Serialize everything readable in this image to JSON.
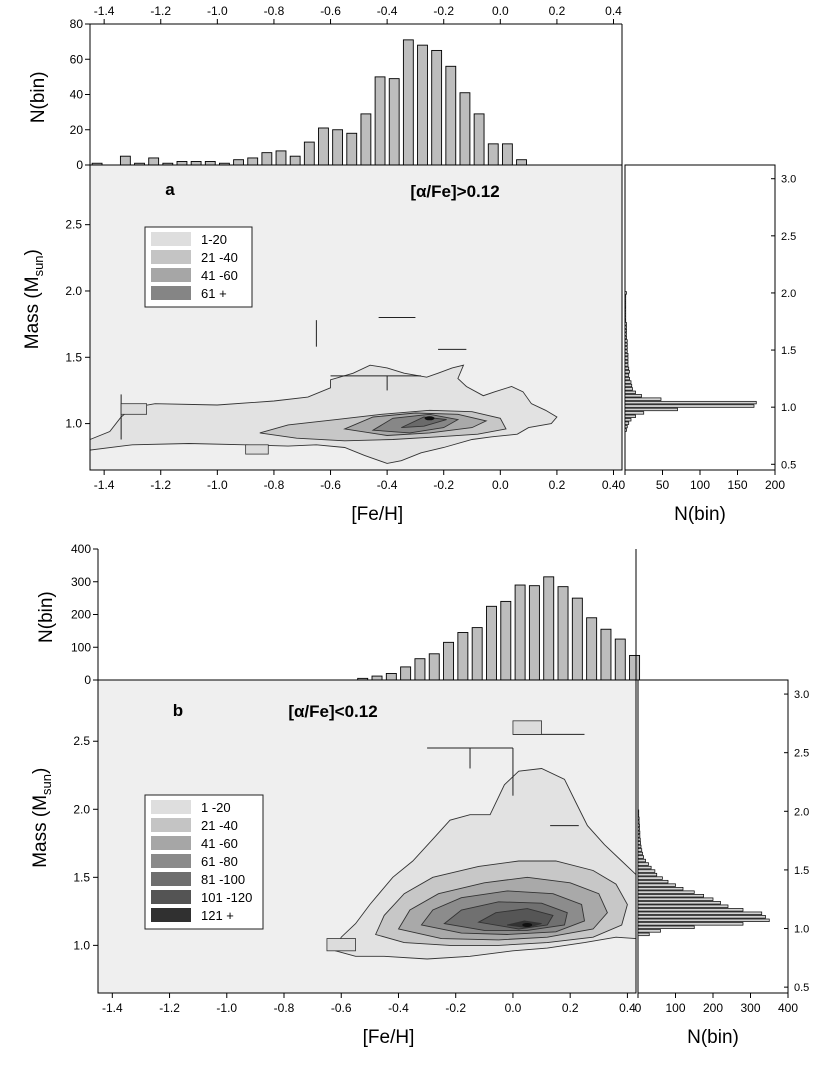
{
  "chart_data": [
    {
      "panel": "a",
      "type": "contour",
      "title": "[α/Fe]>0.12",
      "panel_label": "a",
      "xlabel": "[Fe/H]",
      "ylabel": "Mass (Msun)",
      "ylabel_main": "Mass (M",
      "ylabel_sub": "sun",
      "ylabel_close": ")",
      "xlim": [
        -1.45,
        0.43
      ],
      "ylim": [
        0.65,
        2.95
      ],
      "xticks": [
        -1.4,
        -1.2,
        -1.0,
        -0.8,
        -0.6,
        -0.4,
        -0.2,
        0.0,
        0.2,
        0.4
      ],
      "xtick_labels": [
        "-1.4",
        "-1.2",
        "-1.0",
        "-0.8",
        "-0.6",
        "-0.4",
        "-0.2",
        "0.0",
        "0.2",
        "0.40"
      ],
      "yticks": [
        1.0,
        1.5,
        2.0,
        2.5
      ],
      "ytick_labels": [
        "1.0",
        "1.5",
        "2.0",
        "2.5"
      ],
      "legend": [
        {
          "label": "1-20",
          "color": "#dedede"
        },
        {
          "label": "21 -40",
          "color": "#c4c4c4"
        },
        {
          "label": "41 -60",
          "color": "#a6a6a6"
        },
        {
          "label": "61 +",
          "color": "#858585"
        }
      ],
      "density_peak": {
        "feh": -0.25,
        "mass": 1.04
      },
      "top_hist": {
        "ylabel": "N(bin)",
        "ylim": [
          0,
          80
        ],
        "yticks": [
          0,
          20,
          40,
          60,
          80
        ],
        "ytick_labels": [
          "0",
          "20",
          "40",
          "60",
          "80"
        ],
        "xticks": [
          -1.4,
          -1.2,
          -1.0,
          -0.8,
          -0.6,
          -0.4,
          -0.2,
          0.0,
          0.2,
          0.4
        ],
        "xtick_labels": [
          "-1.4",
          "-1.2",
          "-1.0",
          "-0.8",
          "-0.6",
          "-0.4",
          "-0.2",
          "0.0",
          "0.2",
          "0.4"
        ],
        "bin_centers": [
          -1.425,
          -1.325,
          -1.275,
          -1.225,
          -1.175,
          -1.125,
          -1.075,
          -1.025,
          -0.975,
          -0.925,
          -0.875,
          -0.825,
          -0.775,
          -0.725,
          -0.675,
          -0.625,
          -0.575,
          -0.525,
          -0.475,
          -0.425,
          -0.375,
          -0.325,
          -0.275,
          -0.225,
          -0.175,
          -0.125,
          -0.075,
          -0.025,
          0.025,
          0.075
        ],
        "values": [
          1,
          5,
          1,
          4,
          1,
          2,
          2,
          2,
          1,
          3,
          4,
          7,
          8,
          5,
          13,
          21,
          20,
          18,
          29,
          50,
          49,
          71,
          68,
          65,
          56,
          41,
          29,
          12,
          12,
          3
        ]
      },
      "right_hist": {
        "xlabel": "N(bin)",
        "xlim": [
          0,
          200
        ],
        "xticks": [
          0,
          50,
          100,
          150,
          200
        ],
        "xtick_labels": [
          "50",
          "100",
          "150",
          "200"
        ],
        "yticks": [
          0.5,
          1.0,
          1.5,
          2.0,
          2.5,
          3.0
        ],
        "ytick_labels": [
          "0.5",
          "1.0",
          "1.5",
          "2.0",
          "2.5",
          "3.0"
        ],
        "bin_centers": [
          0.8,
          0.83,
          0.86,
          0.89,
          0.92,
          0.95,
          0.98,
          1.01,
          1.04,
          1.07,
          1.1,
          1.13,
          1.16,
          1.19,
          1.22,
          1.25,
          1.28,
          1.31,
          1.34,
          1.37,
          1.4,
          1.43,
          1.46,
          1.49,
          1.52,
          1.55,
          1.58,
          1.61,
          1.64,
          1.67,
          1.7,
          1.73,
          1.76,
          1.79,
          1.82,
          1.85,
          1.88,
          1.91,
          1.94,
          1.97,
          2.0
        ],
        "values": [
          2,
          3,
          5,
          8,
          14,
          25,
          70,
          172,
          175,
          48,
          22,
          14,
          10,
          9,
          8,
          6,
          5,
          6,
          5,
          4,
          4,
          4,
          4,
          3,
          3,
          3,
          3,
          2,
          2,
          2,
          2,
          2,
          1,
          1,
          1,
          1,
          1,
          1,
          1,
          1,
          2
        ]
      }
    },
    {
      "panel": "b",
      "type": "contour",
      "title": "[α/Fe]<0.12",
      "panel_label": "b",
      "xlabel": "[Fe/H]",
      "ylabel": "Mass (Msun)",
      "ylabel_main": "Mass (M",
      "ylabel_sub": "sun",
      "ylabel_close": ")",
      "xlim": [
        -1.45,
        0.43
      ],
      "ylim": [
        0.65,
        2.95
      ],
      "xticks": [
        -1.4,
        -1.2,
        -1.0,
        -0.8,
        -0.6,
        -0.4,
        -0.2,
        0.0,
        0.2,
        0.4
      ],
      "xtick_labels": [
        "-1.4",
        "-1.2",
        "-1.0",
        "-0.8",
        "-0.6",
        "-0.4",
        "-0.2",
        "0.0",
        "0.2",
        "0.4"
      ],
      "yticks": [
        1.0,
        1.5,
        2.0,
        2.5
      ],
      "ytick_labels": [
        "1.0",
        "1.5",
        "2.0",
        "2.5"
      ],
      "legend": [
        {
          "label": "1 -20",
          "color": "#dedede"
        },
        {
          "label": "21 -40",
          "color": "#c4c4c4"
        },
        {
          "label": "41 -60",
          "color": "#a6a6a6"
        },
        {
          "label": "61 -80",
          "color": "#8a8a8a"
        },
        {
          "label": "81 -100",
          "color": "#6e6e6e"
        },
        {
          "label": "101 -120",
          "color": "#545454"
        },
        {
          "label": "121 +",
          "color": "#303030"
        }
      ],
      "density_peak": {
        "feh": 0.05,
        "mass": 1.15
      },
      "top_hist": {
        "ylabel": "N(bin)",
        "ylim": [
          0,
          400
        ],
        "yticks": [
          0,
          100,
          200,
          300,
          400
        ],
        "ytick_labels": [
          "0",
          "100",
          "200",
          "300",
          "400"
        ],
        "bin_centers": [
          -0.525,
          -0.475,
          -0.425,
          -0.375,
          -0.325,
          -0.275,
          -0.225,
          -0.175,
          -0.125,
          -0.075,
          -0.025,
          0.025,
          0.075,
          0.125,
          0.175,
          0.225,
          0.275,
          0.325,
          0.375,
          0.425
        ],
        "values": [
          5,
          12,
          20,
          40,
          65,
          80,
          115,
          145,
          160,
          225,
          240,
          290,
          288,
          315,
          285,
          250,
          190,
          155,
          125,
          75
        ]
      },
      "right_hist": {
        "xlabel": "N(bin)",
        "xlim": [
          0,
          400
        ],
        "xticks": [
          0,
          100,
          200,
          300,
          400
        ],
        "xtick_labels": [
          "0",
          "100",
          "200",
          "300",
          "400"
        ],
        "yticks": [
          0.5,
          1.0,
          1.5,
          2.0,
          2.5,
          3.0
        ],
        "ytick_labels": [
          "0.5",
          "1.0",
          "1.5",
          "2.0",
          "2.5",
          "3.0"
        ],
        "bin_centers": [
          0.95,
          0.98,
          1.01,
          1.04,
          1.07,
          1.1,
          1.13,
          1.16,
          1.19,
          1.22,
          1.25,
          1.28,
          1.31,
          1.34,
          1.37,
          1.4,
          1.43,
          1.46,
          1.49,
          1.52,
          1.55,
          1.58,
          1.61,
          1.64,
          1.67,
          1.7,
          1.73,
          1.76,
          1.79,
          1.82,
          1.85,
          1.88,
          1.91,
          1.94,
          1.97,
          2.0
        ],
        "values": [
          30,
          60,
          150,
          280,
          350,
          340,
          330,
          280,
          240,
          220,
          200,
          175,
          150,
          120,
          100,
          80,
          65,
          50,
          45,
          35,
          28,
          20,
          15,
          12,
          10,
          8,
          7,
          6,
          5,
          5,
          4,
          4,
          3,
          3,
          2,
          2
        ]
      }
    }
  ]
}
